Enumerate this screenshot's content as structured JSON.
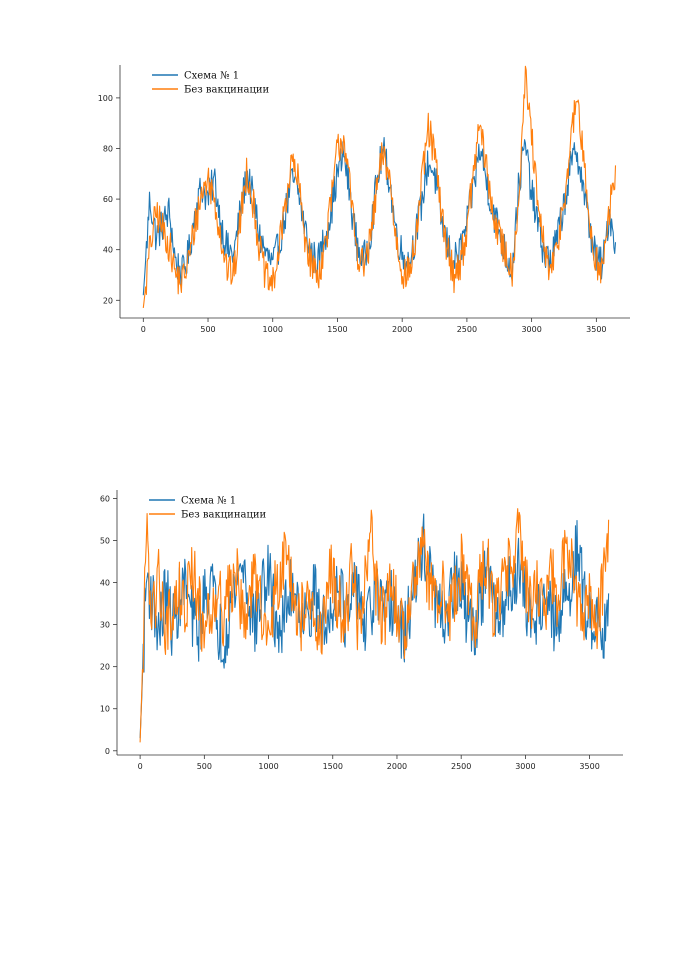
{
  "chart_data": [
    {
      "type": "line",
      "title": "",
      "xlabel": "",
      "ylabel": "",
      "xlim": [
        -180,
        3760
      ],
      "ylim": [
        13,
        113
      ],
      "xticks": [
        0,
        500,
        1000,
        1500,
        2000,
        2500,
        3000,
        3500
      ],
      "yticks": [
        20,
        40,
        60,
        80,
        100
      ],
      "grid": false,
      "legend_position": "top-left",
      "series": [
        {
          "name": "Схема № 1",
          "color": "#1f77b4",
          "x": [
            0,
            50,
            100,
            150,
            200,
            250,
            300,
            350,
            400,
            450,
            500,
            550,
            600,
            650,
            700,
            750,
            800,
            850,
            900,
            950,
            1000,
            1050,
            1100,
            1150,
            1200,
            1250,
            1300,
            1350,
            1400,
            1450,
            1500,
            1550,
            1600,
            1650,
            1700,
            1750,
            1800,
            1850,
            1900,
            1950,
            2000,
            2050,
            2100,
            2150,
            2200,
            2250,
            2300,
            2350,
            2400,
            2450,
            2500,
            2550,
            2600,
            2650,
            2700,
            2750,
            2800,
            2850,
            2900,
            2950,
            3000,
            3050,
            3100,
            3150,
            3200,
            3250,
            3300,
            3350,
            3400,
            3450,
            3500,
            3550,
            3600,
            3650
          ],
          "values": [
            22,
            60,
            45,
            50,
            55,
            35,
            30,
            38,
            55,
            65,
            60,
            68,
            50,
            40,
            38,
            55,
            70,
            60,
            45,
            38,
            34,
            42,
            55,
            68,
            62,
            48,
            38,
            35,
            45,
            55,
            70,
            78,
            60,
            42,
            35,
            45,
            65,
            80,
            68,
            48,
            38,
            35,
            45,
            58,
            75,
            70,
            52,
            42,
            35,
            40,
            50,
            65,
            80,
            68,
            55,
            48,
            38,
            32,
            65,
            82,
            62,
            50,
            38,
            36,
            45,
            58,
            72,
            80,
            64,
            48,
            36,
            34,
            55,
            42
          ]
        },
        {
          "name": "Без вакцинации",
          "color": "#ff7f0e",
          "x": [
            0,
            50,
            100,
            150,
            200,
            250,
            300,
            350,
            400,
            450,
            500,
            550,
            600,
            650,
            700,
            750,
            800,
            850,
            900,
            950,
            1000,
            1050,
            1100,
            1150,
            1200,
            1250,
            1300,
            1350,
            1400,
            1450,
            1500,
            1550,
            1600,
            1650,
            1700,
            1750,
            1800,
            1850,
            1900,
            1950,
            2000,
            2050,
            2100,
            2150,
            2200,
            2250,
            2300,
            2350,
            2400,
            2450,
            2500,
            2550,
            2600,
            2650,
            2700,
            2750,
            2800,
            2850,
            2900,
            2950,
            3000,
            3050,
            3100,
            3150,
            3200,
            3250,
            3300,
            3350,
            3400,
            3450,
            3500,
            3550,
            3600,
            3650
          ],
          "values": [
            17,
            40,
            55,
            48,
            42,
            30,
            27,
            36,
            50,
            62,
            68,
            60,
            45,
            32,
            30,
            52,
            72,
            58,
            40,
            28,
            26,
            40,
            60,
            75,
            66,
            45,
            34,
            30,
            40,
            58,
            80,
            85,
            62,
            40,
            33,
            42,
            62,
            78,
            70,
            45,
            32,
            30,
            42,
            65,
            88,
            78,
            55,
            40,
            30,
            35,
            48,
            70,
            90,
            72,
            55,
            45,
            38,
            32,
            60,
            108,
            85,
            55,
            40,
            30,
            42,
            60,
            80,
            102,
            75,
            50,
            35,
            32,
            55,
            72
          ]
        }
      ]
    },
    {
      "type": "line",
      "title": "",
      "xlabel": "",
      "ylabel": "",
      "xlim": [
        -180,
        3760
      ],
      "ylim": [
        -1,
        62
      ],
      "xticks": [
        0,
        500,
        1000,
        1500,
        2000,
        2500,
        3000,
        3500
      ],
      "yticks": [
        0,
        10,
        20,
        30,
        40,
        50,
        60
      ],
      "grid": false,
      "legend_position": "top-left",
      "series": [
        {
          "name": "Схема № 1",
          "color": "#1f77b4",
          "x": [
            0,
            50,
            100,
            150,
            200,
            250,
            300,
            350,
            400,
            450,
            500,
            550,
            600,
            650,
            700,
            750,
            800,
            850,
            900,
            950,
            1000,
            1050,
            1100,
            1150,
            1200,
            1250,
            1300,
            1350,
            1400,
            1450,
            1500,
            1550,
            1600,
            1650,
            1700,
            1750,
            1800,
            1850,
            1900,
            1950,
            2000,
            2050,
            2100,
            2150,
            2200,
            2250,
            2300,
            2350,
            2400,
            2450,
            2500,
            2550,
            2600,
            2650,
            2700,
            2750,
            2800,
            2850,
            2900,
            2950,
            3000,
            3050,
            3100,
            3150,
            3200,
            3250,
            3300,
            3350,
            3400,
            3450,
            3500,
            3550,
            3600,
            3650
          ],
          "values": [
            3,
            42,
            35,
            28,
            38,
            30,
            35,
            40,
            32,
            28,
            36,
            42,
            30,
            26,
            34,
            40,
            45,
            35,
            30,
            38,
            42,
            32,
            28,
            36,
            40,
            34,
            30,
            38,
            32,
            28,
            36,
            42,
            30,
            35,
            40,
            28,
            34,
            38,
            30,
            36,
            32,
            26,
            34,
            40,
            50,
            42,
            36,
            30,
            34,
            40,
            38,
            32,
            28,
            36,
            42,
            34,
            30,
            38,
            40,
            45,
            36,
            30,
            34,
            38,
            32,
            28,
            36,
            40,
            48,
            38,
            30,
            34,
            28,
            36
          ]
        },
        {
          "name": "Без вакцинации",
          "color": "#ff7f0e",
          "x": [
            0,
            50,
            100,
            150,
            200,
            250,
            300,
            350,
            400,
            450,
            500,
            550,
            600,
            650,
            700,
            750,
            800,
            850,
            900,
            950,
            1000,
            1050,
            1100,
            1150,
            1200,
            1250,
            1300,
            1350,
            1400,
            1450,
            1500,
            1550,
            1600,
            1650,
            1700,
            1750,
            1800,
            1850,
            1900,
            1950,
            2000,
            2050,
            2100,
            2150,
            2200,
            2250,
            2300,
            2350,
            2400,
            2450,
            2500,
            2550,
            2600,
            2650,
            2700,
            2750,
            2800,
            2850,
            2900,
            2950,
            3000,
            3050,
            3100,
            3150,
            3200,
            3250,
            3300,
            3350,
            3400,
            3450,
            3500,
            3550,
            3600,
            3650
          ],
          "values": [
            2,
            50,
            32,
            42,
            28,
            35,
            40,
            30,
            45,
            36,
            28,
            34,
            40,
            32,
            38,
            44,
            30,
            36,
            42,
            34,
            28,
            38,
            44,
            50,
            36,
            30,
            40,
            32,
            26,
            38,
            42,
            34,
            30,
            44,
            28,
            38,
            50,
            36,
            30,
            40,
            34,
            28,
            36,
            44,
            48,
            40,
            34,
            42,
            30,
            36,
            44,
            38,
            28,
            40,
            46,
            32,
            38,
            44,
            42,
            55,
            40,
            34,
            38,
            30,
            42,
            36,
            44,
            48,
            36,
            30,
            40,
            28,
            38,
            52
          ]
        }
      ]
    }
  ]
}
